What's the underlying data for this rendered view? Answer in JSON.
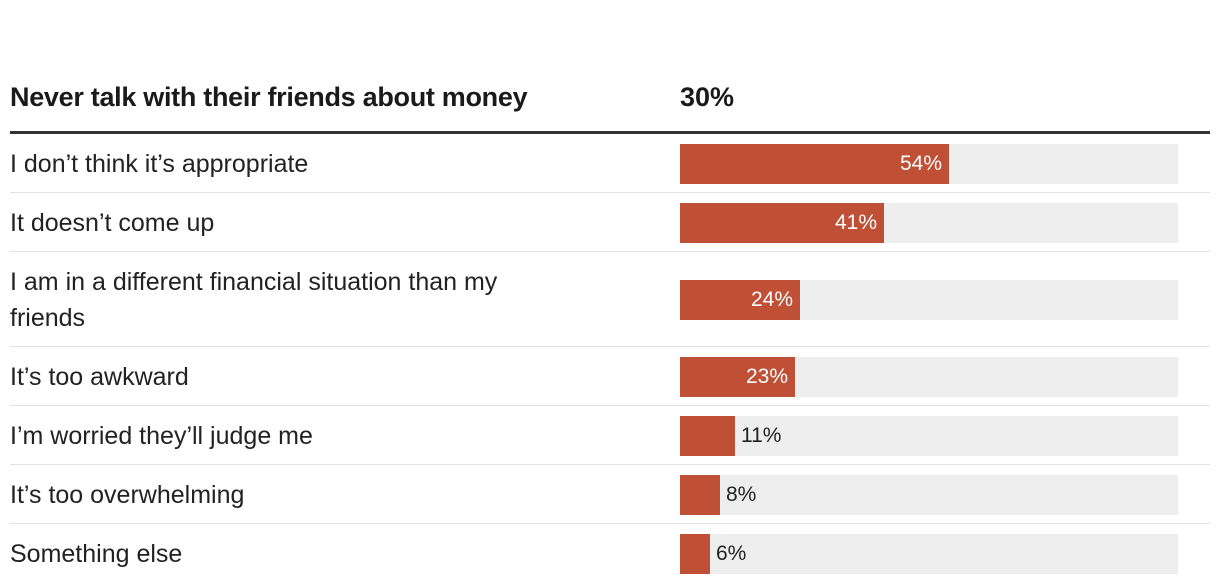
{
  "chart_data": {
    "type": "bar",
    "orientation": "horizontal",
    "title": "Never talk with their friends about money",
    "title_value": "30%",
    "categories": [
      "I don’t think it’s appropriate",
      "It doesn’t come up",
      "I am in a different financial situation than my friends",
      "It’s too awkward",
      "I’m worried they’ll judge me",
      "It’s too overwhelming",
      "Something else"
    ],
    "values": [
      54,
      41,
      24,
      23,
      11,
      8,
      6
    ],
    "value_labels": [
      "54%",
      "41%",
      "24%",
      "23%",
      "11%",
      "8%",
      "6%"
    ],
    "xlim": [
      0,
      100
    ],
    "bar_color": "#bf5036",
    "track_color": "#eeeeee"
  }
}
